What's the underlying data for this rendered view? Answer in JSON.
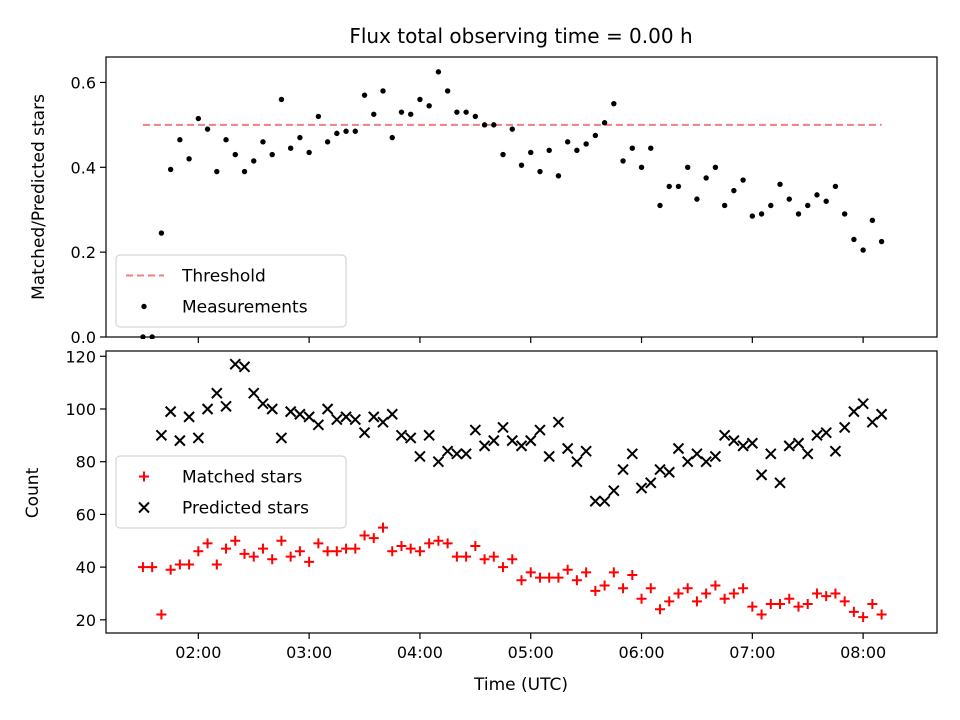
{
  "chart_data": [
    {
      "type": "scatter",
      "title": "Flux total observing time = 0.00 h",
      "ylabel": "Matched/Predicted stars",
      "xlabel": "",
      "xlim": [
        "01:10",
        "08:40"
      ],
      "ylim": [
        0,
        0.66
      ],
      "x_ticks": [
        "02:00",
        "03:00",
        "04:00",
        "05:00",
        "06:00",
        "07:00",
        "08:00"
      ],
      "y_ticks": [
        0.0,
        0.2,
        0.4,
        0.6
      ],
      "y_tick_labels": [
        "0.0",
        "0.2",
        "0.4",
        "0.6"
      ],
      "legend_position": "lower-left",
      "threshold": {
        "name": "Threshold",
        "value": 0.5,
        "x_start": "1:30",
        "x_end": "8:10",
        "color": "#f08080"
      },
      "series": [
        {
          "name": "Measurements",
          "color": "#000000",
          "marker": "dot",
          "x": [
            "1:30",
            "1:35",
            "1:40",
            "1:45",
            "1:50",
            "1:55",
            "2:00",
            "2:05",
            "2:10",
            "2:15",
            "2:20",
            "2:25",
            "2:30",
            "2:35",
            "2:40",
            "2:45",
            "2:50",
            "2:55",
            "3:00",
            "3:05",
            "3:10",
            "3:15",
            "3:20",
            "3:25",
            "3:30",
            "3:35",
            "3:40",
            "3:45",
            "3:50",
            "3:55",
            "4:00",
            "4:05",
            "4:10",
            "4:15",
            "4:20",
            "4:25",
            "4:30",
            "4:35",
            "4:40",
            "4:45",
            "4:50",
            "4:55",
            "5:00",
            "5:05",
            "5:10",
            "5:15",
            "5:20",
            "5:25",
            "5:30",
            "5:35",
            "5:40",
            "5:45",
            "5:50",
            "5:55",
            "6:00",
            "6:05",
            "6:10",
            "6:15",
            "6:20",
            "6:25",
            "6:30",
            "6:35",
            "6:40",
            "6:45",
            "6:50",
            "6:55",
            "7:00",
            "7:05",
            "7:10",
            "7:15",
            "7:20",
            "7:25",
            "7:30",
            "7:35",
            "7:40",
            "7:45",
            "7:50",
            "7:55",
            "8:00",
            "8:05",
            "8:10"
          ],
          "y": [
            0.0,
            0.0,
            0.245,
            0.395,
            0.465,
            0.42,
            0.515,
            0.49,
            0.39,
            0.465,
            0.43,
            0.39,
            0.415,
            0.46,
            0.43,
            0.56,
            0.445,
            0.47,
            0.435,
            0.52,
            0.46,
            0.48,
            0.485,
            0.485,
            0.57,
            0.525,
            0.58,
            0.47,
            0.53,
            0.525,
            0.56,
            0.545,
            0.625,
            0.58,
            0.53,
            0.53,
            0.52,
            0.5,
            0.5,
            0.43,
            0.49,
            0.405,
            0.435,
            0.39,
            0.44,
            0.38,
            0.46,
            0.44,
            0.455,
            0.475,
            0.505,
            0.55,
            0.415,
            0.445,
            0.4,
            0.445,
            0.31,
            0.355,
            0.355,
            0.4,
            0.325,
            0.375,
            0.4,
            0.31,
            0.345,
            0.37,
            0.285,
            0.29,
            0.31,
            0.36,
            0.325,
            0.29,
            0.31,
            0.335,
            0.32,
            0.355,
            0.29,
            0.23,
            0.205,
            0.275,
            0.225
          ]
        }
      ]
    },
    {
      "type": "scatter",
      "title": "",
      "ylabel": "Count",
      "xlabel": "Time (UTC)",
      "xlim": [
        "01:10",
        "08:40"
      ],
      "ylim": [
        15,
        122
      ],
      "x_ticks": [
        "02:00",
        "03:00",
        "04:00",
        "05:00",
        "06:00",
        "07:00",
        "08:00"
      ],
      "y_ticks": [
        20,
        40,
        60,
        80,
        100,
        120
      ],
      "legend_position": "center-left",
      "series": [
        {
          "name": "Matched stars",
          "color": "#ff0000",
          "marker": "plus",
          "x": [
            "1:30",
            "1:35",
            "1:40",
            "1:45",
            "1:50",
            "1:55",
            "2:00",
            "2:05",
            "2:10",
            "2:15",
            "2:20",
            "2:25",
            "2:30",
            "2:35",
            "2:40",
            "2:45",
            "2:50",
            "2:55",
            "3:00",
            "3:05",
            "3:10",
            "3:15",
            "3:20",
            "3:25",
            "3:30",
            "3:35",
            "3:40",
            "3:45",
            "3:50",
            "3:55",
            "4:00",
            "4:05",
            "4:10",
            "4:15",
            "4:20",
            "4:25",
            "4:30",
            "4:35",
            "4:40",
            "4:45",
            "4:50",
            "4:55",
            "5:00",
            "5:05",
            "5:10",
            "5:15",
            "5:20",
            "5:25",
            "5:30",
            "5:35",
            "5:40",
            "5:45",
            "5:50",
            "5:55",
            "6:00",
            "6:05",
            "6:10",
            "6:15",
            "6:20",
            "6:25",
            "6:30",
            "6:35",
            "6:40",
            "6:45",
            "6:50",
            "6:55",
            "7:00",
            "7:05",
            "7:10",
            "7:15",
            "7:20",
            "7:25",
            "7:30",
            "7:35",
            "7:40",
            "7:45",
            "7:50",
            "7:55",
            "8:00",
            "8:05",
            "8:10"
          ],
          "y": [
            40,
            40,
            22,
            39,
            41,
            41,
            46,
            49,
            41,
            47,
            50,
            45,
            44,
            47,
            43,
            50,
            44,
            46,
            42,
            49,
            46,
            46,
            47,
            47,
            52,
            51,
            55,
            46,
            48,
            47,
            46,
            49,
            50,
            49,
            44,
            44,
            48,
            43,
            44,
            40,
            43,
            35,
            38,
            36,
            36,
            36,
            39,
            35,
            38,
            31,
            33,
            38,
            32,
            37,
            28,
            32,
            24,
            27,
            30,
            32,
            27,
            30,
            33,
            28,
            30,
            32,
            25,
            22,
            26,
            26,
            28,
            25,
            26,
            30,
            29,
            30,
            27,
            23,
            21,
            26,
            22
          ]
        },
        {
          "name": "Predicted stars",
          "color": "#000000",
          "marker": "x",
          "x": [
            "1:40",
            "1:45",
            "1:50",
            "1:55",
            "2:00",
            "2:05",
            "2:10",
            "2:15",
            "2:20",
            "2:25",
            "2:30",
            "2:35",
            "2:40",
            "2:45",
            "2:50",
            "2:55",
            "3:00",
            "3:05",
            "3:10",
            "3:15",
            "3:20",
            "3:25",
            "3:30",
            "3:35",
            "3:40",
            "3:45",
            "3:50",
            "3:55",
            "4:00",
            "4:05",
            "4:10",
            "4:15",
            "4:20",
            "4:25",
            "4:30",
            "4:35",
            "4:40",
            "4:45",
            "4:50",
            "4:55",
            "5:00",
            "5:05",
            "5:10",
            "5:15",
            "5:20",
            "5:25",
            "5:30",
            "5:35",
            "5:40",
            "5:45",
            "5:50",
            "5:55",
            "6:00",
            "6:05",
            "6:10",
            "6:15",
            "6:20",
            "6:25",
            "6:30",
            "6:35",
            "6:40",
            "6:45",
            "6:50",
            "6:55",
            "7:00",
            "7:05",
            "7:10",
            "7:15",
            "7:20",
            "7:25",
            "7:30",
            "7:35",
            "7:40",
            "7:45",
            "7:50",
            "7:55",
            "8:00",
            "8:05",
            "8:10"
          ],
          "y": [
            90,
            99,
            88,
            97,
            89,
            100,
            106,
            101,
            117,
            116,
            106,
            102,
            100,
            89,
            99,
            98,
            97,
            94,
            100,
            96,
            97,
            96,
            91,
            97,
            95,
            98,
            90,
            89,
            82,
            90,
            80,
            84,
            83,
            83,
            92,
            86,
            88,
            93,
            88,
            86,
            88,
            92,
            82,
            95,
            85,
            80,
            84,
            65,
            65,
            69,
            77,
            83,
            70,
            72,
            77,
            76,
            85,
            80,
            83,
            80,
            82,
            90,
            88,
            86,
            87,
            75,
            83,
            72,
            86,
            87,
            83,
            90,
            91,
            84,
            93,
            99,
            102,
            95,
            98
          ]
        }
      ]
    }
  ]
}
